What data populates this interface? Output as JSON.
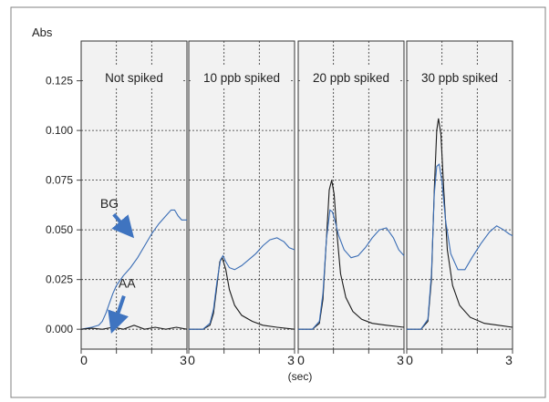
{
  "chart_data": {
    "type": "line",
    "ylabel": "Abs",
    "xlabel": "(sec)",
    "ylim": [
      -0.01,
      0.145
    ],
    "xlim": [
      0,
      3
    ],
    "yticks": [
      "0.000",
      "0.025",
      "0.050",
      "0.075",
      "0.100",
      "0.125"
    ],
    "ytick_values": [
      0.0,
      0.025,
      0.05,
      0.075,
      0.1,
      0.125
    ],
    "xtick_labels": [
      "0",
      "3"
    ],
    "grid": true,
    "colors": {
      "BG": "#3a6db5",
      "AA": "#1a1a1a",
      "arrow": "#3f74c0",
      "panel_bg": "#f2f2f2"
    },
    "panels": [
      {
        "title": "Not spiked",
        "series": [
          {
            "name": "BG",
            "points": [
              [
                0,
                0.0
              ],
              [
                0.3,
                0.001
              ],
              [
                0.5,
                0.002
              ],
              [
                0.6,
                0.004
              ],
              [
                0.7,
                0.008
              ],
              [
                0.8,
                0.013
              ],
              [
                0.9,
                0.018
              ],
              [
                1.0,
                0.022
              ],
              [
                1.2,
                0.027
              ],
              [
                1.4,
                0.031
              ],
              [
                1.6,
                0.036
              ],
              [
                1.8,
                0.042
              ],
              [
                2.0,
                0.048
              ],
              [
                2.2,
                0.053
              ],
              [
                2.4,
                0.057
              ],
              [
                2.55,
                0.06
              ],
              [
                2.65,
                0.06
              ],
              [
                2.75,
                0.057
              ],
              [
                2.85,
                0.055
              ],
              [
                3.0,
                0.055
              ]
            ]
          },
          {
            "name": "AA",
            "points": [
              [
                0,
                0.0
              ],
              [
                0.3,
                0.0005
              ],
              [
                0.6,
                0.0
              ],
              [
                0.9,
                0.001
              ],
              [
                1.2,
                0.0
              ],
              [
                1.5,
                0.002
              ],
              [
                1.8,
                0.0
              ],
              [
                2.1,
                0.001
              ],
              [
                2.4,
                0.0
              ],
              [
                2.7,
                0.001
              ],
              [
                3.0,
                0.0
              ]
            ]
          }
        ],
        "annotations": [
          {
            "text": "BG",
            "x": 0.8,
            "y": 0.061,
            "arrow_to": [
              1.3,
              0.05
            ]
          },
          {
            "text": "AA",
            "x": 1.3,
            "y": 0.021,
            "arrow_to": [
              0.95,
              0.003
            ]
          }
        ]
      },
      {
        "title": "10 ppb spiked",
        "series": [
          {
            "name": "AA",
            "points": [
              [
                0,
                0.0
              ],
              [
                0.4,
                0.0
              ],
              [
                0.6,
                0.002
              ],
              [
                0.7,
                0.008
              ],
              [
                0.8,
                0.022
              ],
              [
                0.88,
                0.034
              ],
              [
                0.95,
                0.036
              ],
              [
                1.05,
                0.03
              ],
              [
                1.15,
                0.02
              ],
              [
                1.3,
                0.012
              ],
              [
                1.5,
                0.007
              ],
              [
                1.8,
                0.004
              ],
              [
                2.1,
                0.002
              ],
              [
                2.5,
                0.001
              ],
              [
                3.0,
                0.0
              ]
            ]
          },
          {
            "name": "BG",
            "points": [
              [
                0,
                0.0
              ],
              [
                0.4,
                0.0
              ],
              [
                0.6,
                0.003
              ],
              [
                0.7,
                0.01
              ],
              [
                0.8,
                0.024
              ],
              [
                0.9,
                0.035
              ],
              [
                0.97,
                0.037
              ],
              [
                1.05,
                0.034
              ],
              [
                1.15,
                0.031
              ],
              [
                1.3,
                0.03
              ],
              [
                1.5,
                0.032
              ],
              [
                1.7,
                0.035
              ],
              [
                1.9,
                0.038
              ],
              [
                2.1,
                0.042
              ],
              [
                2.3,
                0.045
              ],
              [
                2.5,
                0.046
              ],
              [
                2.7,
                0.044
              ],
              [
                2.85,
                0.041
              ],
              [
                3.0,
                0.04
              ]
            ]
          }
        ]
      },
      {
        "title": "20 ppb spiked",
        "series": [
          {
            "name": "AA",
            "points": [
              [
                0,
                0.0
              ],
              [
                0.4,
                0.0
              ],
              [
                0.6,
                0.003
              ],
              [
                0.7,
                0.015
              ],
              [
                0.8,
                0.045
              ],
              [
                0.88,
                0.07
              ],
              [
                0.95,
                0.075
              ],
              [
                1.02,
                0.068
              ],
              [
                1.1,
                0.048
              ],
              [
                1.2,
                0.028
              ],
              [
                1.35,
                0.016
              ],
              [
                1.55,
                0.009
              ],
              [
                1.8,
                0.005
              ],
              [
                2.1,
                0.003
              ],
              [
                2.5,
                0.002
              ],
              [
                3.0,
                0.001
              ]
            ]
          },
          {
            "name": "BG",
            "points": [
              [
                0,
                0.0
              ],
              [
                0.4,
                0.0
              ],
              [
                0.6,
                0.004
              ],
              [
                0.7,
                0.018
              ],
              [
                0.8,
                0.045
              ],
              [
                0.9,
                0.06
              ],
              [
                0.97,
                0.059
              ],
              [
                1.05,
                0.054
              ],
              [
                1.15,
                0.047
              ],
              [
                1.3,
                0.04
              ],
              [
                1.5,
                0.036
              ],
              [
                1.7,
                0.037
              ],
              [
                1.9,
                0.041
              ],
              [
                2.1,
                0.046
              ],
              [
                2.3,
                0.05
              ],
              [
                2.5,
                0.051
              ],
              [
                2.7,
                0.046
              ],
              [
                2.85,
                0.04
              ],
              [
                3.0,
                0.037
              ]
            ]
          }
        ]
      },
      {
        "title": "30 ppb spiked",
        "series": [
          {
            "name": "AA",
            "points": [
              [
                0,
                0.0
              ],
              [
                0.4,
                0.0
              ],
              [
                0.6,
                0.004
              ],
              [
                0.7,
                0.025
              ],
              [
                0.78,
                0.07
              ],
              [
                0.85,
                0.1
              ],
              [
                0.9,
                0.106
              ],
              [
                0.97,
                0.098
              ],
              [
                1.05,
                0.07
              ],
              [
                1.15,
                0.04
              ],
              [
                1.3,
                0.022
              ],
              [
                1.5,
                0.012
              ],
              [
                1.8,
                0.006
              ],
              [
                2.2,
                0.003
              ],
              [
                2.6,
                0.002
              ],
              [
                3.0,
                0.001
              ]
            ]
          },
          {
            "name": "BG",
            "points": [
              [
                0,
                0.0
              ],
              [
                0.4,
                0.0
              ],
              [
                0.6,
                0.005
              ],
              [
                0.7,
                0.028
              ],
              [
                0.78,
                0.068
              ],
              [
                0.85,
                0.082
              ],
              [
                0.92,
                0.083
              ],
              [
                1.0,
                0.074
              ],
              [
                1.1,
                0.055
              ],
              [
                1.25,
                0.038
              ],
              [
                1.45,
                0.03
              ],
              [
                1.65,
                0.03
              ],
              [
                1.85,
                0.036
              ],
              [
                2.1,
                0.043
              ],
              [
                2.35,
                0.049
              ],
              [
                2.55,
                0.052
              ],
              [
                2.75,
                0.05
              ],
              [
                2.9,
                0.048
              ],
              [
                3.0,
                0.047
              ]
            ]
          }
        ]
      }
    ]
  }
}
